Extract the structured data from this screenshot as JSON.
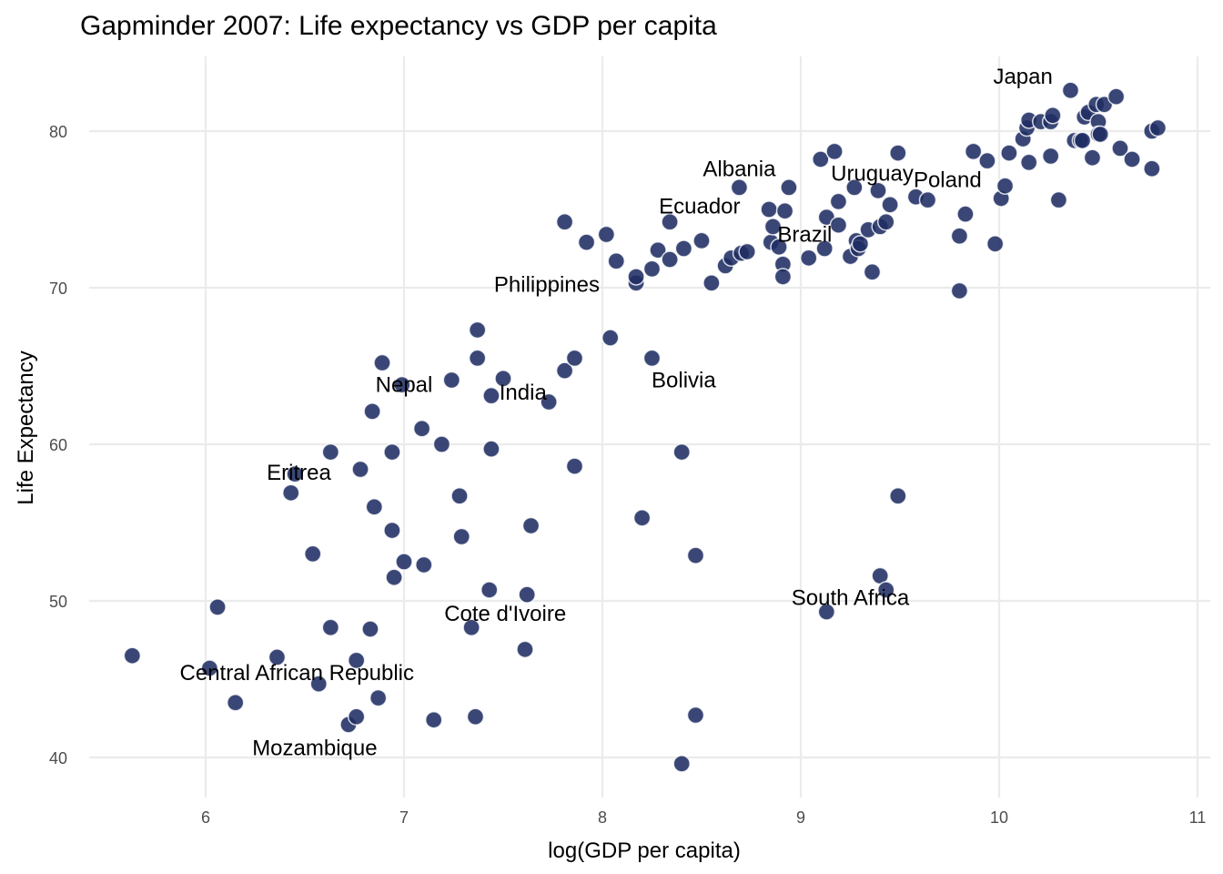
{
  "chart_data": {
    "type": "scatter",
    "title": "Gapminder 2007: Life expectancy vs GDP per capita",
    "xlabel": "log(GDP per capita)",
    "ylabel": "Life Expectancy",
    "xlim": [
      5.4,
      11.05
    ],
    "ylim": [
      37.6,
      84.6
    ],
    "xticks": [
      6,
      7,
      8,
      9,
      10,
      11
    ],
    "yticks": [
      40,
      50,
      60,
      70,
      80
    ],
    "grid": true,
    "legend": "none",
    "marker_color": "#1f2d63",
    "points": [
      [
        5.63,
        46.5
      ],
      [
        6.02,
        45.7
      ],
      [
        6.06,
        49.6
      ],
      [
        6.15,
        43.5
      ],
      [
        6.36,
        46.4
      ],
      [
        6.43,
        56.9
      ],
      [
        6.45,
        58.1
      ],
      [
        6.54,
        53.0
      ],
      [
        6.57,
        44.7
      ],
      [
        6.63,
        59.5
      ],
      [
        6.63,
        48.3
      ],
      [
        6.72,
        42.1
      ],
      [
        6.76,
        42.6
      ],
      [
        6.76,
        46.2
      ],
      [
        6.78,
        58.4
      ],
      [
        6.83,
        48.2
      ],
      [
        6.84,
        62.1
      ],
      [
        6.85,
        56.0
      ],
      [
        6.87,
        43.8
      ],
      [
        6.89,
        65.2
      ],
      [
        6.94,
        59.5
      ],
      [
        6.94,
        54.5
      ],
      [
        6.95,
        51.5
      ],
      [
        6.99,
        63.8
      ],
      [
        7.0,
        52.5
      ],
      [
        7.09,
        61.0
      ],
      [
        7.1,
        52.3
      ],
      [
        7.15,
        42.4
      ],
      [
        7.19,
        60.0
      ],
      [
        7.24,
        64.1
      ],
      [
        7.28,
        56.7
      ],
      [
        7.29,
        54.1
      ],
      [
        7.34,
        48.3
      ],
      [
        7.36,
        42.6
      ],
      [
        7.37,
        67.3
      ],
      [
        7.37,
        65.5
      ],
      [
        7.43,
        50.7
      ],
      [
        7.44,
        63.1
      ],
      [
        7.44,
        59.7
      ],
      [
        7.5,
        64.2
      ],
      [
        7.61,
        46.9
      ],
      [
        7.62,
        50.4
      ],
      [
        7.64,
        54.8
      ],
      [
        7.73,
        62.7
      ],
      [
        7.81,
        64.7
      ],
      [
        7.81,
        74.2
      ],
      [
        7.86,
        65.5
      ],
      [
        7.86,
        58.6
      ],
      [
        7.92,
        72.9
      ],
      [
        8.02,
        73.4
      ],
      [
        8.04,
        66.8
      ],
      [
        8.07,
        71.7
      ],
      [
        8.17,
        70.3
      ],
      [
        8.17,
        70.7
      ],
      [
        8.2,
        55.3
      ],
      [
        8.25,
        71.2
      ],
      [
        8.25,
        65.5
      ],
      [
        8.28,
        72.4
      ],
      [
        8.34,
        71.8
      ],
      [
        8.34,
        74.2
      ],
      [
        8.4,
        59.5
      ],
      [
        8.41,
        72.5
      ],
      [
        8.47,
        52.9
      ],
      [
        8.47,
        42.7
      ],
      [
        8.5,
        73.0
      ],
      [
        8.4,
        39.6
      ],
      [
        8.55,
        70.3
      ],
      [
        8.62,
        71.4
      ],
      [
        8.65,
        71.9
      ],
      [
        8.69,
        76.4
      ],
      [
        8.7,
        72.2
      ],
      [
        8.73,
        72.3
      ],
      [
        8.84,
        75.0
      ],
      [
        8.85,
        72.9
      ],
      [
        8.86,
        73.9
      ],
      [
        8.89,
        72.6
      ],
      [
        8.91,
        71.5
      ],
      [
        8.91,
        70.7
      ],
      [
        8.92,
        74.9
      ],
      [
        8.94,
        76.4
      ],
      [
        9.04,
        71.9
      ],
      [
        9.1,
        78.2
      ],
      [
        9.12,
        72.5
      ],
      [
        9.13,
        74.5
      ],
      [
        9.13,
        49.3
      ],
      [
        9.17,
        78.7
      ],
      [
        9.19,
        75.5
      ],
      [
        9.19,
        74.0
      ],
      [
        9.25,
        72.0
      ],
      [
        9.27,
        76.4
      ],
      [
        9.28,
        73.0
      ],
      [
        9.29,
        72.5
      ],
      [
        9.3,
        72.8
      ],
      [
        9.34,
        73.7
      ],
      [
        9.36,
        71.0
      ],
      [
        9.39,
        76.2
      ],
      [
        9.4,
        51.6
      ],
      [
        9.4,
        73.9
      ],
      [
        9.43,
        74.2
      ],
      [
        9.43,
        50.7
      ],
      [
        9.45,
        75.3
      ],
      [
        9.49,
        78.6
      ],
      [
        9.49,
        56.7
      ],
      [
        9.58,
        75.8
      ],
      [
        9.64,
        75.6
      ],
      [
        9.8,
        73.3
      ],
      [
        9.8,
        69.8
      ],
      [
        9.83,
        74.7
      ],
      [
        9.87,
        78.7
      ],
      [
        9.94,
        78.1
      ],
      [
        9.98,
        72.8
      ],
      [
        10.01,
        75.7
      ],
      [
        10.03,
        76.5
      ],
      [
        10.05,
        78.6
      ],
      [
        10.12,
        79.5
      ],
      [
        10.14,
        80.2
      ],
      [
        10.15,
        80.7
      ],
      [
        10.15,
        78.0
      ],
      [
        10.21,
        80.6
      ],
      [
        10.26,
        80.6
      ],
      [
        10.27,
        81.0
      ],
      [
        10.26,
        78.4
      ],
      [
        10.3,
        75.6
      ],
      [
        10.36,
        82.6
      ],
      [
        10.38,
        79.4
      ],
      [
        10.41,
        79.4
      ],
      [
        10.42,
        79.4
      ],
      [
        10.43,
        80.9
      ],
      [
        10.45,
        81.2
      ],
      [
        10.47,
        78.3
      ],
      [
        10.49,
        81.7
      ],
      [
        10.5,
        80.6
      ],
      [
        10.5,
        79.8
      ],
      [
        10.51,
        79.8
      ],
      [
        10.53,
        81.7
      ],
      [
        10.59,
        82.2
      ],
      [
        10.61,
        78.9
      ],
      [
        10.67,
        78.2
      ],
      [
        10.77,
        80.0
      ],
      [
        10.77,
        77.6
      ],
      [
        10.8,
        80.2
      ]
    ],
    "annotations": [
      {
        "text": "Japan",
        "x": 10.12,
        "y": 83.5
      },
      {
        "text": "Albania",
        "x": 8.69,
        "y": 77.6
      },
      {
        "text": "Uruguay",
        "x": 9.36,
        "y": 77.3
      },
      {
        "text": "Poland",
        "x": 9.74,
        "y": 76.9
      },
      {
        "text": "Ecuador",
        "x": 8.49,
        "y": 75.2
      },
      {
        "text": "Brazil",
        "x": 9.02,
        "y": 73.4
      },
      {
        "text": "Philippines",
        "x": 7.72,
        "y": 70.2
      },
      {
        "text": "Bolivia",
        "x": 8.41,
        "y": 64.1
      },
      {
        "text": "Nepal",
        "x": 7.0,
        "y": 63.8
      },
      {
        "text": "India",
        "x": 7.6,
        "y": 63.3
      },
      {
        "text": "Eritrea",
        "x": 6.47,
        "y": 58.2
      },
      {
        "text": "South Africa",
        "x": 9.25,
        "y": 50.2
      },
      {
        "text": "Cote d'Ivoire",
        "x": 7.51,
        "y": 49.2
      },
      {
        "text": "Central African Republic",
        "x": 6.46,
        "y": 45.4
      },
      {
        "text": "Mozambique",
        "x": 6.55,
        "y": 40.6
      }
    ]
  }
}
